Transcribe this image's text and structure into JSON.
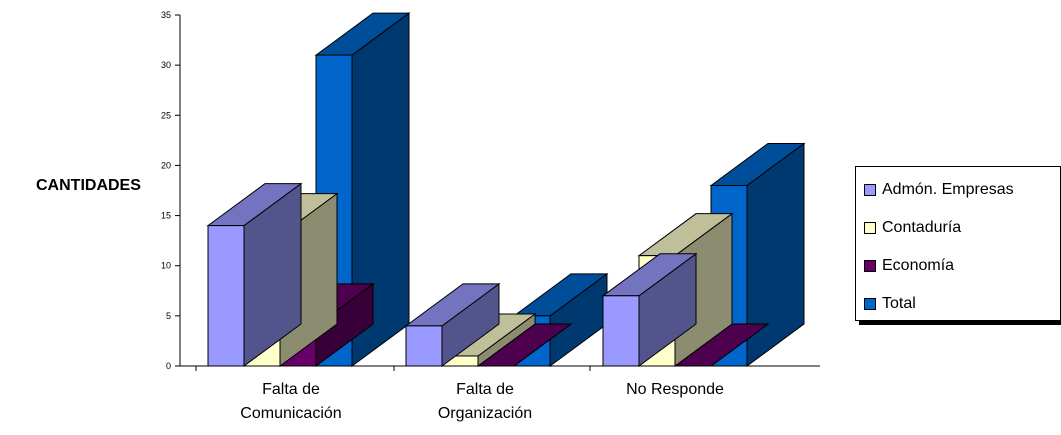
{
  "chart_data": {
    "type": "bar",
    "title": "",
    "xlabel": "",
    "ylabel": "CANTIDADES",
    "ylim": [
      0,
      35
    ],
    "yticks": [
      0,
      5,
      10,
      15,
      20,
      25,
      30,
      35
    ],
    "categories": [
      [
        "Falta de",
        "Comunicación"
      ],
      [
        "Falta de",
        "Organización"
      ],
      [
        "No Responde"
      ]
    ],
    "series": [
      {
        "name": "Admón. Empresas",
        "values": [
          14,
          4,
          7
        ]
      },
      {
        "name": "Contaduría",
        "values": [
          13,
          1,
          11
        ]
      },
      {
        "name": "Economía",
        "values": [
          4,
          0,
          0
        ]
      },
      {
        "name": "Total",
        "values": [
          31,
          5,
          18
        ]
      }
    ],
    "legend_position": "right",
    "grid": false,
    "colors": {
      "Admón. Empresas": "#9999ff",
      "Contaduría": "#ffffcc",
      "Economía": "#660066",
      "Total": "#0066cc"
    }
  }
}
